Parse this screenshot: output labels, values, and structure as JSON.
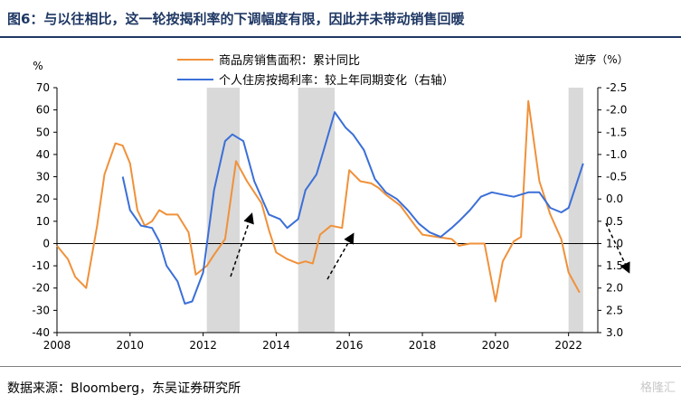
{
  "header": {
    "title": "图6：与以往相比，这一轮按揭利率的下调幅度有限，因此并未带动销售回暖"
  },
  "footer": {
    "source": "数据来源：Bloomberg，东吴证券研究所",
    "watermark": "格隆汇"
  },
  "chart_data": {
    "type": "line",
    "x_unit_label": "",
    "left_axis": {
      "unit": "%",
      "ylim": [
        -40,
        70
      ],
      "ticks": [
        70,
        60,
        50,
        40,
        30,
        20,
        10,
        0,
        -10,
        -20,
        -30,
        -40
      ]
    },
    "right_axis": {
      "unit": "逆序（%）",
      "reversed": true,
      "ylim": [
        -2.5,
        3.0
      ],
      "ticks": [
        "-2.5",
        "-2.0",
        "-1.5",
        "-1.0",
        "-0.5",
        "0.0",
        "0.5",
        "1.0",
        "1.5",
        "2.0",
        "2.5",
        "3.0"
      ]
    },
    "x_axis": {
      "xlim": [
        2008,
        2022.8
      ],
      "ticks": [
        "2008",
        "2010",
        "2012",
        "2014",
        "2016",
        "2018",
        "2020",
        "2022"
      ]
    },
    "shaded_periods": [
      [
        2012.1,
        2013.0
      ],
      [
        2014.6,
        2015.6
      ],
      [
        2022.0,
        2022.4
      ]
    ],
    "series": [
      {
        "name": "商品房销售面积：累计同比",
        "color": "#f0913a",
        "axis": "left",
        "points": [
          [
            2008.0,
            -1
          ],
          [
            2008.3,
            -7
          ],
          [
            2008.5,
            -15
          ],
          [
            2008.8,
            -20
          ],
          [
            2009.1,
            8
          ],
          [
            2009.3,
            31
          ],
          [
            2009.6,
            45
          ],
          [
            2009.8,
            44
          ],
          [
            2010.0,
            36
          ],
          [
            2010.2,
            15
          ],
          [
            2010.4,
            8
          ],
          [
            2010.6,
            10
          ],
          [
            2010.8,
            15
          ],
          [
            2011.0,
            13
          ],
          [
            2011.3,
            13
          ],
          [
            2011.6,
            5
          ],
          [
            2011.8,
            -14
          ],
          [
            2012.1,
            -10
          ],
          [
            2012.3,
            -5
          ],
          [
            2012.6,
            2
          ],
          [
            2012.9,
            37
          ],
          [
            2013.2,
            28
          ],
          [
            2013.6,
            18
          ],
          [
            2013.8,
            6
          ],
          [
            2014.0,
            -4
          ],
          [
            2014.3,
            -7
          ],
          [
            2014.6,
            -9
          ],
          [
            2014.8,
            -8
          ],
          [
            2015.0,
            -9
          ],
          [
            2015.2,
            4
          ],
          [
            2015.5,
            8
          ],
          [
            2015.8,
            7
          ],
          [
            2016.0,
            33
          ],
          [
            2016.3,
            28
          ],
          [
            2016.6,
            27
          ],
          [
            2016.8,
            25
          ],
          [
            2017.0,
            22
          ],
          [
            2017.4,
            17
          ],
          [
            2017.8,
            8
          ],
          [
            2018.0,
            4
          ],
          [
            2018.4,
            3
          ],
          [
            2018.8,
            2
          ],
          [
            2019.0,
            -1
          ],
          [
            2019.3,
            0
          ],
          [
            2019.7,
            0
          ],
          [
            2020.0,
            -26
          ],
          [
            2020.2,
            -8
          ],
          [
            2020.5,
            1
          ],
          [
            2020.7,
            3
          ],
          [
            2020.9,
            64
          ],
          [
            2021.2,
            28
          ],
          [
            2021.5,
            13
          ],
          [
            2021.8,
            2
          ],
          [
            2022.0,
            -13
          ],
          [
            2022.3,
            -22
          ]
        ]
      },
      {
        "name": "个人住房按揭利率：较上年同期变化（右轴）",
        "color": "#3b6fd8",
        "axis": "right",
        "points": [
          [
            2009.8,
            -0.5
          ],
          [
            2010.0,
            0.25
          ],
          [
            2010.3,
            0.6
          ],
          [
            2010.6,
            0.65
          ],
          [
            2010.8,
            0.95
          ],
          [
            2011.0,
            1.5
          ],
          [
            2011.3,
            1.85
          ],
          [
            2011.5,
            2.35
          ],
          [
            2011.7,
            2.3
          ],
          [
            2012.0,
            1.65
          ],
          [
            2012.3,
            -0.2
          ],
          [
            2012.6,
            -1.3
          ],
          [
            2012.8,
            -1.45
          ],
          [
            2013.1,
            -1.3
          ],
          [
            2013.4,
            -0.4
          ],
          [
            2013.8,
            0.35
          ],
          [
            2014.1,
            0.45
          ],
          [
            2014.3,
            0.65
          ],
          [
            2014.6,
            0.45
          ],
          [
            2014.8,
            -0.2
          ],
          [
            2015.1,
            -0.55
          ],
          [
            2015.3,
            -1.1
          ],
          [
            2015.6,
            -1.95
          ],
          [
            2015.9,
            -1.6
          ],
          [
            2016.1,
            -1.45
          ],
          [
            2016.4,
            -1.1
          ],
          [
            2016.7,
            -0.45
          ],
          [
            2017.0,
            -0.15
          ],
          [
            2017.3,
            0.0
          ],
          [
            2017.6,
            0.25
          ],
          [
            2017.9,
            0.55
          ],
          [
            2018.2,
            0.75
          ],
          [
            2018.5,
            0.85
          ],
          [
            2018.8,
            0.65
          ],
          [
            2019.0,
            0.5
          ],
          [
            2019.3,
            0.25
          ],
          [
            2019.6,
            -0.05
          ],
          [
            2019.9,
            -0.15
          ],
          [
            2020.2,
            -0.1
          ],
          [
            2020.5,
            -0.05
          ],
          [
            2020.9,
            -0.15
          ],
          [
            2021.2,
            -0.15
          ],
          [
            2021.5,
            0.2
          ],
          [
            2021.8,
            0.3
          ],
          [
            2022.0,
            0.2
          ],
          [
            2022.2,
            -0.3
          ],
          [
            2022.4,
            -0.8
          ]
        ]
      }
    ],
    "grid": false,
    "legend_position": "top-center"
  }
}
